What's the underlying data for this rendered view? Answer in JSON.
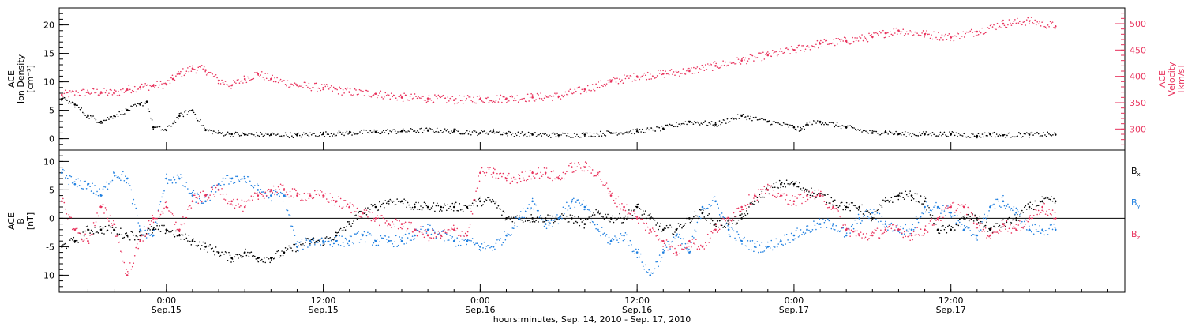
{
  "colors": {
    "black": "#000000",
    "red": "#e8325c",
    "blue": "#1f7fe0"
  },
  "chart_data": [
    {
      "type": "scatter",
      "panel": "top",
      "left_axis_label": [
        "ACE",
        "Ion Density",
        "[cm⁻³]"
      ],
      "right_axis_label": [
        "ACE",
        "Velocity",
        "[km/s]"
      ],
      "left_ylim": [
        -2,
        23
      ],
      "right_ylim": [
        260,
        530
      ],
      "left_ticks": [
        "0",
        "5",
        "10",
        "15",
        "20"
      ],
      "right_ticks": [
        "300",
        "350",
        "400",
        "450",
        "500"
      ],
      "grid": false,
      "series": [
        {
          "axis": "left",
          "color": "#000000",
          "x": [
            -8.0,
            -7,
            -6,
            -5,
            -4,
            -3,
            -2,
            -1.5,
            -1,
            0,
            1,
            2,
            3,
            4,
            5,
            6,
            8,
            10,
            12,
            14,
            16,
            18,
            20,
            22,
            24,
            25,
            26,
            28,
            30,
            32,
            34,
            36,
            38,
            40,
            42,
            44,
            46,
            48,
            48.5,
            49,
            50,
            52,
            54,
            55,
            56,
            58,
            60,
            62,
            63,
            64,
            66,
            68
          ],
          "y": [
            7,
            6,
            4,
            3,
            4,
            5,
            6,
            6.5,
            2,
            1.5,
            4,
            5,
            1.5,
            1,
            0.8,
            0.7,
            0.7,
            0.6,
            0.8,
            1,
            1.2,
            1.3,
            1.5,
            1.3,
            1,
            1.3,
            0.9,
            0.7,
            0.6,
            0.7,
            1,
            1.3,
            1.8,
            3,
            2.5,
            4,
            3,
            2,
            1.5,
            2.5,
            3,
            2,
            1,
            1.2,
            0.8,
            0.8,
            0.8,
            0.5,
            0.8,
            0.6,
            0.7,
            0.7
          ]
        },
        {
          "axis": "right",
          "color": "#e8325c",
          "x": [
            -8,
            -6,
            -5,
            -4,
            -3,
            -2,
            -1,
            0,
            0.5,
            1,
            2,
            3,
            4,
            5,
            6,
            7,
            8,
            10,
            12,
            14,
            16,
            18,
            20,
            22,
            24,
            26,
            28,
            30,
            32,
            34,
            36,
            38,
            40,
            42,
            44,
            46,
            48,
            50,
            52,
            54,
            55,
            56,
            58,
            60,
            62,
            64,
            66,
            68
          ],
          "y": [
            365,
            370,
            370,
            368,
            375,
            380,
            382,
            385,
            395,
            405,
            415,
            412,
            392,
            383,
            395,
            405,
            395,
            383,
            378,
            370,
            367,
            360,
            358,
            355,
            357,
            358,
            360,
            362,
            375,
            390,
            400,
            405,
            410,
            420,
            430,
            440,
            450,
            462,
            467,
            475,
            482,
            487,
            480,
            474,
            485,
            500,
            505,
            495
          ]
        }
      ]
    },
    {
      "type": "scatter",
      "panel": "bottom",
      "left_axis_label": [
        "ACE",
        "B",
        "[nT]"
      ],
      "ylim": [
        -13,
        12
      ],
      "ticks": [
        "-10",
        "-5",
        "0",
        "5",
        "10"
      ],
      "zero_line": true,
      "legend": [
        "Bx",
        "By",
        "Bz"
      ],
      "legend_position": "right",
      "series": [
        {
          "name": "Bx",
          "color": "#000000",
          "x": [
            -8,
            -7,
            -6,
            -5,
            -4,
            -3,
            -2,
            -1,
            0,
            1,
            2,
            3,
            4,
            5,
            6,
            7,
            8,
            9,
            10,
            11,
            12,
            13,
            14,
            15,
            16,
            17,
            18,
            19,
            20,
            21,
            22,
            23,
            24,
            25,
            26,
            27,
            28,
            29,
            30,
            31,
            32,
            33,
            34,
            35,
            36,
            37,
            38,
            39,
            40,
            41,
            42,
            43,
            44,
            45,
            46,
            47,
            48,
            49,
            50,
            51,
            52,
            53,
            54,
            55,
            56,
            57,
            58,
            59,
            60,
            61,
            62,
            63,
            64,
            65,
            66,
            67,
            68
          ],
          "y": [
            -5,
            -4,
            -2,
            -2,
            -2,
            -3,
            -3,
            -2,
            -2,
            -3,
            -4,
            -5,
            -6,
            -7,
            -6,
            -7,
            -7,
            -6,
            -5,
            -4,
            -4,
            -3,
            -1,
            1,
            2,
            3,
            3,
            2,
            2,
            2,
            2,
            2,
            3,
            3,
            0,
            0,
            0,
            0,
            0,
            0,
            -1,
            1,
            0,
            0,
            2,
            0,
            -2,
            -2,
            0,
            1,
            -1,
            -1,
            0,
            3,
            5,
            6,
            6,
            5,
            4,
            3,
            2,
            2,
            0,
            3,
            4,
            4,
            3,
            -2,
            -2,
            0,
            0,
            -2,
            -1,
            0,
            2,
            3,
            3
          ]
        },
        {
          "name": "By",
          "color": "#1f7fe0",
          "x": [
            -8,
            -7,
            -6,
            -5,
            -4,
            -3,
            -2,
            -1,
            0,
            1,
            2,
            3,
            4,
            5,
            6,
            7,
            8,
            9,
            10,
            11,
            12,
            13,
            14,
            15,
            16,
            17,
            18,
            19,
            20,
            21,
            22,
            23,
            24,
            25,
            26,
            27,
            28,
            29,
            30,
            31,
            32,
            33,
            34,
            35,
            36,
            37,
            38,
            39,
            40,
            41,
            42,
            43,
            44,
            45,
            46,
            47,
            48,
            49,
            50,
            51,
            52,
            53,
            54,
            55,
            56,
            57,
            58,
            59,
            60,
            61,
            62,
            63,
            64,
            65,
            66,
            67,
            68
          ],
          "y": [
            8,
            6,
            6,
            4,
            8,
            7,
            -2,
            -3,
            7,
            7,
            4,
            3,
            6,
            7,
            7,
            5,
            4,
            4,
            -5,
            -4,
            -4,
            -4,
            -4,
            -3,
            -4,
            -4,
            -4,
            -3,
            -2,
            -3,
            -4,
            -4,
            -5,
            -5,
            -3,
            0,
            3,
            -1,
            0,
            3,
            2,
            -2,
            -4,
            -3,
            -6,
            -10,
            -6,
            -3,
            -6,
            2,
            3,
            -2,
            -4,
            -5,
            -5,
            -4,
            -3,
            -2,
            -1,
            -1,
            -3,
            0,
            1,
            -1,
            -2,
            -2,
            2,
            2,
            1,
            -2,
            -3,
            2,
            3,
            1,
            -2,
            -2,
            -2
          ]
        },
        {
          "name": "Bz",
          "color": "#e8325c",
          "x": [
            -8,
            -7,
            -6,
            -5,
            -4,
            -3,
            -2,
            -1,
            0,
            1,
            2,
            3,
            4,
            5,
            6,
            7,
            8,
            9,
            10,
            11,
            12,
            13,
            14,
            15,
            16,
            17,
            18,
            19,
            20,
            21,
            22,
            23,
            24,
            25,
            26,
            27,
            28,
            29,
            30,
            31,
            32,
            33,
            34,
            35,
            36,
            37,
            38,
            39,
            40,
            41,
            42,
            43,
            44,
            45,
            46,
            47,
            48,
            49,
            50,
            51,
            52,
            53,
            54,
            55,
            56,
            57,
            58,
            59,
            60,
            61,
            62,
            63,
            64,
            65,
            66,
            67,
            68
          ],
          "y": [
            3,
            -2,
            -4,
            2,
            -1,
            -10,
            -4,
            0,
            2,
            -2,
            3,
            4,
            5,
            3,
            2,
            4,
            5,
            5,
            4,
            4,
            4,
            3,
            2,
            1,
            0,
            -1,
            -1,
            -2,
            -3,
            -3,
            -2,
            -3,
            8,
            8,
            7,
            7,
            8,
            8,
            7,
            9,
            9,
            8,
            4,
            2,
            0,
            -2,
            -4,
            -6,
            -4,
            -5,
            -2,
            0,
            2,
            4,
            5,
            4,
            3,
            4,
            4,
            2,
            -2,
            -3,
            -3,
            -2,
            -2,
            -3,
            -2,
            0,
            2,
            2,
            -1,
            -3,
            -1,
            -2,
            0,
            2,
            0
          ]
        }
      ]
    }
  ],
  "x_axis": {
    "xlim": [
      -8.2,
      73.3
    ],
    "ticks": [
      {
        "x": 0,
        "time": "0:00",
        "date": "Sep.15"
      },
      {
        "x": 12,
        "time": "12:00",
        "date": "Sep.15"
      },
      {
        "x": 24,
        "time": "0:00",
        "date": "Sep.16"
      },
      {
        "x": 36,
        "time": "12:00",
        "date": "Sep.16"
      },
      {
        "x": 48,
        "time": "0:00",
        "date": "Sep.17"
      },
      {
        "x": 60,
        "time": "12:00",
        "date": "Sep.17"
      }
    ],
    "label": "hours:minutes, Sep. 14, 2010 - Sep. 17, 2010"
  }
}
